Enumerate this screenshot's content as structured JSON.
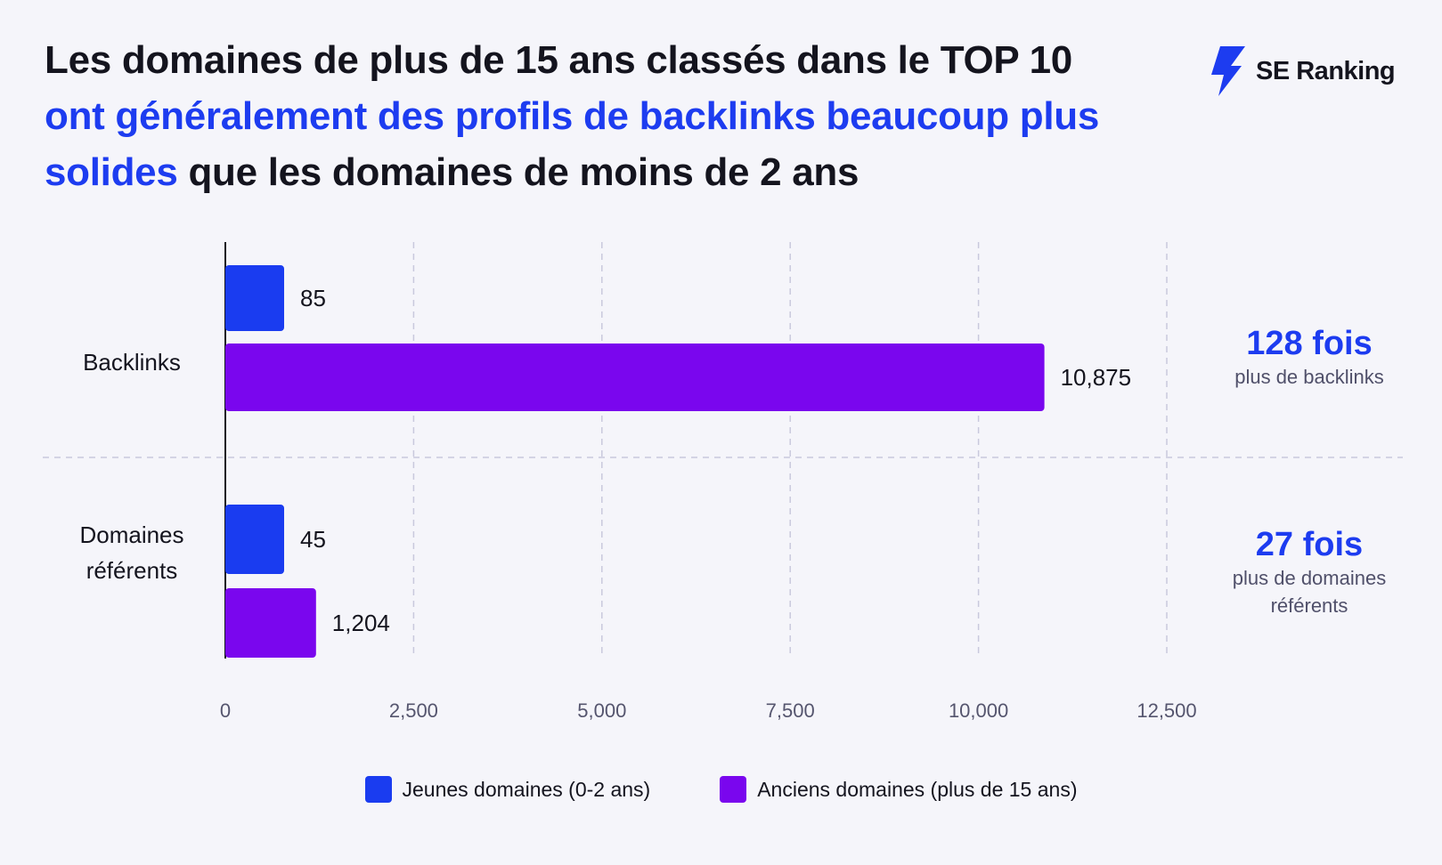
{
  "header": {
    "title_part1": "Les domaines de plus de 15 ans classés dans le TOP 10",
    "title_part2": "ont généralement des profils de backlinks beaucoup plus solides",
    "title_part3": "que les domaines de moins de 2 ans"
  },
  "brand": {
    "name": "SE Ranking",
    "icon": "lightning-bolt-icon"
  },
  "colors": {
    "young": "#1a3cf0",
    "old": "#7a06ee",
    "accent": "#1d3cf0"
  },
  "annotations": [
    {
      "big": "128 fois",
      "small": "plus de backlinks"
    },
    {
      "big": "27 fois",
      "small": "plus de domaines référents"
    }
  ],
  "legend": [
    {
      "label": "Jeunes domaines (0-2 ans)",
      "color": "#1a3cf0"
    },
    {
      "label": "Anciens domaines (plus de 15 ans)",
      "color": "#7a06ee"
    }
  ],
  "chart_data": {
    "type": "bar",
    "orientation": "horizontal",
    "categories": [
      {
        "lines": [
          "Backlinks"
        ]
      },
      {
        "lines": [
          "Domaines",
          "référents"
        ]
      }
    ],
    "series": [
      {
        "name": "Jeunes domaines (0-2 ans)",
        "values": [
          85,
          45
        ],
        "labels": [
          "85",
          "45"
        ],
        "color": "#1a3cf0"
      },
      {
        "name": "Anciens domaines (plus de 15 ans)",
        "values": [
          10875,
          1204
        ],
        "labels": [
          "10,875",
          "1,204"
        ],
        "color": "#7a06ee"
      }
    ],
    "xlim": [
      0,
      12500
    ],
    "xticks": [
      0,
      2500,
      5000,
      7500,
      10000,
      12500
    ],
    "xtick_labels": [
      "0",
      "2,500",
      "5,000",
      "7,500",
      "10,000",
      "12,500"
    ],
    "grid": true,
    "legend_position": "bottom",
    "title": "",
    "xlabel": "",
    "ylabel": ""
  }
}
